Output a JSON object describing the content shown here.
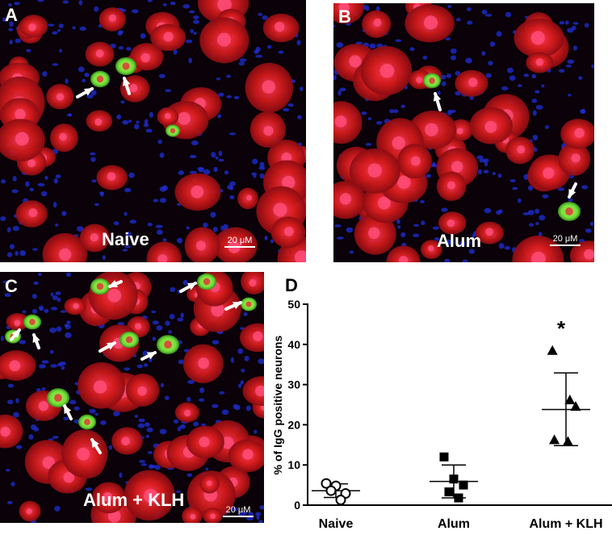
{
  "panels": {
    "a": {
      "letter": "A",
      "group": "Naive",
      "scale": "20 μM"
    },
    "b": {
      "letter": "B",
      "group": "Alum",
      "scale": "20 μM"
    },
    "c": {
      "letter": "C",
      "group": "Alum + KLH",
      "scale": "20 μM"
    },
    "d": {
      "letter": "D"
    }
  },
  "colors": {
    "neuron": "#d21a1a",
    "nucleus": "#1f2fd8",
    "igg": "#6fe03a",
    "arrow": "#ffffff"
  },
  "chart_data": {
    "type": "scatter",
    "ylabel": "% of IgG positive neurons",
    "categories": [
      "Naive",
      "Alum",
      "Alum + KLH"
    ],
    "yticks": [
      "0",
      "10",
      "20",
      "30",
      "40",
      "50"
    ],
    "ylim": [
      0,
      50
    ],
    "markers": [
      "open-circle",
      "filled-square",
      "filled-triangle"
    ],
    "groups": [
      {
        "points": [
          5.4,
          4.8,
          2.9,
          3.6,
          1.3
        ],
        "mean": 3.6,
        "sd_upper": 5.3,
        "sd_lower": 1.9
      },
      {
        "points": [
          12.0,
          6.5,
          5.0,
          3.3,
          1.8
        ],
        "mean": 5.9,
        "sd_upper": 10.0,
        "sd_lower": 1.8
      },
      {
        "points": [
          38.4,
          26.1,
          24.5,
          16.2,
          15.8
        ],
        "mean": 23.8,
        "sd_upper": 32.9,
        "sd_lower": 14.8
      }
    ],
    "annotation": {
      "text": "*",
      "category": "Alum + KLH",
      "y": 45
    }
  }
}
